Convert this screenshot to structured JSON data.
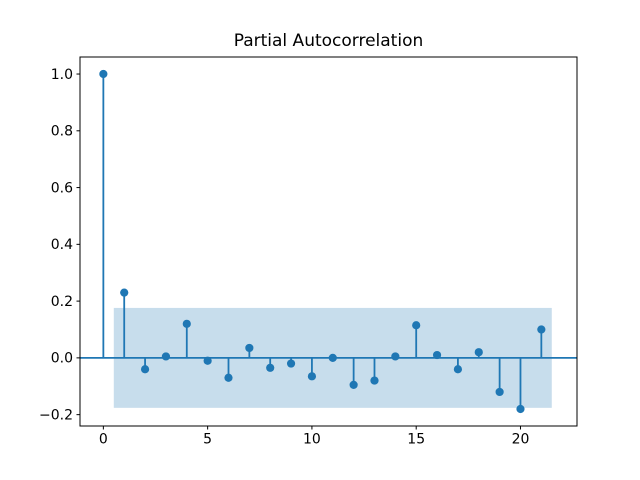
{
  "chart_data": {
    "type": "stem",
    "title": "Partial Autocorrelation",
    "xlabel": "",
    "ylabel": "",
    "grid": false,
    "legend_position": "none",
    "lags": [
      0,
      1,
      2,
      3,
      4,
      5,
      6,
      7,
      8,
      9,
      10,
      11,
      12,
      13,
      14,
      15,
      16,
      17,
      18,
      19,
      20,
      21
    ],
    "values": [
      1.0,
      0.23,
      -0.04,
      0.005,
      0.12,
      -0.01,
      -0.07,
      0.035,
      -0.035,
      -0.02,
      -0.065,
      0.0,
      -0.095,
      -0.08,
      0.005,
      0.115,
      0.01,
      -0.04,
      0.02,
      -0.12,
      -0.18,
      0.1
    ],
    "confidence_band": {
      "upper": 0.176,
      "lower": -0.176,
      "x_start": 0.5,
      "x_end": 21.5
    },
    "baseline": 0.0,
    "xlim": [
      -1.12,
      22.71
    ],
    "ylim": [
      -0.24,
      1.06
    ],
    "x_ticks": {
      "values": [
        0,
        5,
        10,
        15,
        20
      ],
      "labels": [
        "0",
        "5",
        "10",
        "15",
        "20"
      ]
    },
    "y_ticks": {
      "values": [
        1.0,
        0.8,
        0.6,
        0.4,
        0.2,
        0.0,
        -0.2
      ],
      "labels": [
        "1.0",
        "0.8",
        "0.6",
        "0.4",
        "0.2",
        "0.0",
        "−0.2"
      ]
    },
    "colors": {
      "stem": "#1f77b4",
      "marker": "#1f77b4",
      "band": "rgba(31,119,180,0.25)",
      "spine": "#000000",
      "background": "#ffffff"
    }
  }
}
